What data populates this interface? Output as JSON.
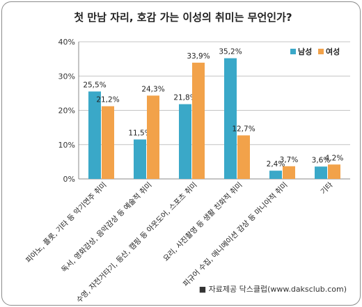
{
  "chart_data": {
    "type": "bar",
    "title": "첫 만남 자리, 호감 가는 이성의 취미는 무언인가?",
    "source": "■ 자료제공 닥스클럽(www.daksclub.com)",
    "ylim": [
      0,
      40
    ],
    "yticks": [
      "0%",
      "10%",
      "20%",
      "30%",
      "40%"
    ],
    "grid": true,
    "legend_position": "top-right",
    "categories": [
      "피아노, 플롯, 기타 등 악기연주 취미",
      "독서, 영화감상, 음악감상 등 예술적 취미",
      "수영, 자전거타기, 등산, 캠핑 등 아웃도어, 스포츠 취미",
      "요리, 사진촬영 등 생활 친화적 취미",
      "피규어 수집, 애니메이션 감상 등 마니아적 취미",
      "기타"
    ],
    "series": [
      {
        "name": "남성",
        "color": "#3aa8c8",
        "values": [
          25.5,
          11.5,
          21.8,
          35.2,
          2.4,
          3.6
        ],
        "labels": [
          "25,5%",
          "11,5%",
          "21,8%",
          "35,2%",
          "2,4%",
          "3,6%"
        ]
      },
      {
        "name": "여성",
        "color": "#f2a24a",
        "values": [
          21.2,
          24.3,
          33.9,
          12.7,
          3.7,
          4.2
        ],
        "labels": [
          "21,2%",
          "24,3%",
          "33,9%",
          "12,7%",
          "3,7%",
          "4,2%"
        ]
      }
    ]
  }
}
